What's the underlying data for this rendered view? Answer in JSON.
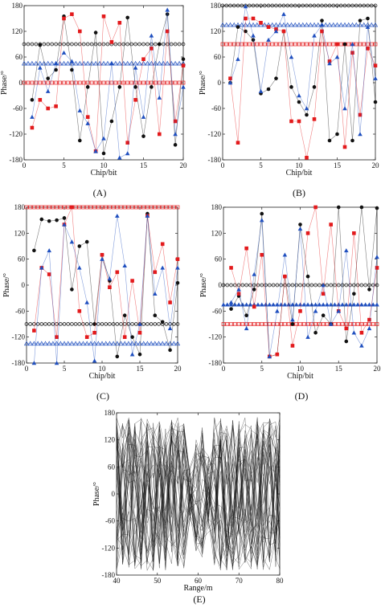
{
  "figure": {
    "panel_labels": [
      "(A)",
      "(B)",
      "(C)",
      "(D)",
      "(E)"
    ]
  },
  "colors": {
    "black": "#111111",
    "red": "#e31a1c",
    "blue": "#1f4fbf",
    "gray": "#777777"
  },
  "chart_data": [
    {
      "id": "A",
      "type": "scatter",
      "xlabel": "Chip/bit",
      "ylabel": "Phase/°",
      "xlim": [
        0,
        20
      ],
      "ylim": [
        -180,
        180
      ],
      "xticks": [
        0,
        5,
        10,
        15,
        20
      ],
      "yticks": [
        -180,
        -120,
        -60,
        0,
        60,
        120,
        180
      ],
      "reference_lines": [
        {
          "y": 90,
          "color": "black",
          "marker": "circle-open"
        },
        {
          "y": 45,
          "color": "blue",
          "marker": "triangle-open"
        },
        {
          "y": 0,
          "color": "red",
          "marker": "square-open"
        }
      ],
      "series": [
        {
          "color": "black",
          "marker": "circle",
          "x": [
            1,
            2,
            3,
            4,
            5,
            6,
            7,
            8,
            9,
            10,
            11,
            12,
            13,
            14,
            15,
            16,
            17,
            18,
            19,
            20
          ],
          "y": [
            -40,
            88,
            10,
            30,
            155,
            30,
            -135,
            -10,
            117,
            -165,
            -90,
            -10,
            152,
            -10,
            -125,
            -10,
            90,
            160,
            -145,
            55
          ]
        },
        {
          "color": "red",
          "marker": "square",
          "x": [
            1,
            2,
            3,
            4,
            5,
            6,
            7,
            8,
            9,
            10,
            11,
            12,
            13,
            14,
            15,
            16,
            17,
            18,
            19,
            20
          ],
          "y": [
            -105,
            -40,
            -60,
            -55,
            150,
            160,
            120,
            -80,
            -160,
            155,
            95,
            140,
            -140,
            -40,
            55,
            80,
            -120,
            120,
            -90,
            40
          ]
        },
        {
          "color": "blue",
          "marker": "triangle",
          "x": [
            1,
            2,
            3,
            4,
            5,
            6,
            7,
            8,
            9,
            10,
            11,
            12,
            13,
            14,
            15,
            16,
            17,
            18,
            19,
            20
          ],
          "y": [
            -80,
            35,
            -20,
            45,
            70,
            50,
            -65,
            -95,
            -160,
            -130,
            45,
            -175,
            -165,
            35,
            -80,
            110,
            -35,
            170,
            -120,
            -10
          ]
        }
      ]
    },
    {
      "id": "B",
      "type": "scatter",
      "xlabel": "Chip/bit",
      "ylabel": "Phase/°",
      "xlim": [
        0,
        20
      ],
      "ylim": [
        -180,
        180
      ],
      "xticks": [
        0,
        5,
        10,
        15,
        20
      ],
      "yticks": [
        -180,
        -120,
        -60,
        0,
        60,
        120,
        180
      ],
      "reference_lines": [
        {
          "y": 180,
          "color": "black",
          "marker": "circle-open"
        },
        {
          "y": 135,
          "color": "blue",
          "marker": "triangle-open"
        },
        {
          "y": 90,
          "color": "red",
          "marker": "square-open"
        }
      ],
      "series": [
        {
          "color": "black",
          "marker": "circle",
          "x": [
            1,
            2,
            3,
            4,
            5,
            6,
            7,
            8,
            9,
            10,
            11,
            12,
            13,
            14,
            15,
            16,
            17,
            18,
            19,
            20
          ],
          "y": [
            0,
            130,
            120,
            100,
            -25,
            -15,
            10,
            120,
            -10,
            -45,
            -75,
            -10,
            145,
            -135,
            -120,
            90,
            -135,
            145,
            150,
            -45
          ]
        },
        {
          "color": "red",
          "marker": "square",
          "x": [
            1,
            2,
            3,
            4,
            5,
            6,
            7,
            8,
            9,
            10,
            11,
            12,
            13,
            14,
            15,
            16,
            17,
            18,
            19,
            20
          ],
          "y": [
            10,
            -140,
            150,
            150,
            140,
            130,
            125,
            120,
            -90,
            -90,
            -175,
            -85,
            120,
            50,
            90,
            -150,
            70,
            -75,
            80,
            40
          ]
        },
        {
          "color": "blue",
          "marker": "triangle",
          "x": [
            1,
            2,
            3,
            4,
            5,
            6,
            7,
            8,
            9,
            10,
            11,
            12,
            13,
            14,
            15,
            16,
            17,
            18,
            19,
            20
          ],
          "y": [
            0,
            55,
            178,
            110,
            -20,
            100,
            120,
            160,
            60,
            -30,
            -60,
            110,
            135,
            45,
            60,
            -60,
            90,
            -120,
            130,
            10
          ]
        }
      ]
    },
    {
      "id": "C",
      "type": "scatter",
      "xlabel": "Chip/bit",
      "ylabel": "Phase/°",
      "xlim": [
        0,
        20
      ],
      "ylim": [
        -180,
        180
      ],
      "xticks": [
        0,
        5,
        10,
        15,
        20
      ],
      "yticks": [
        -180,
        -120,
        -60,
        0,
        60,
        120,
        180
      ],
      "reference_lines": [
        {
          "y": 180,
          "color": "red",
          "marker": "square-open"
        },
        {
          "y": -90,
          "color": "black",
          "marker": "circle-open"
        },
        {
          "y": -135,
          "color": "blue",
          "marker": "triangle-open"
        }
      ],
      "series": [
        {
          "color": "black",
          "marker": "circle",
          "x": [
            1,
            2,
            3,
            4,
            5,
            6,
            7,
            8,
            9,
            10,
            11,
            12,
            13,
            14,
            15,
            16,
            17,
            18,
            19,
            20
          ],
          "y": [
            80,
            152,
            148,
            150,
            155,
            -10,
            90,
            100,
            -90,
            70,
            10,
            -165,
            -70,
            -120,
            -160,
            165,
            -70,
            -85,
            -150,
            5
          ]
        },
        {
          "color": "red",
          "marker": "square",
          "x": [
            1,
            2,
            3,
            4,
            5,
            6,
            7,
            8,
            9,
            10,
            11,
            12,
            13,
            14,
            15,
            16,
            17,
            18,
            19,
            20
          ],
          "y": [
            -105,
            40,
            25,
            -120,
            140,
            180,
            -60,
            -120,
            -110,
            70,
            -5,
            30,
            -120,
            10,
            -110,
            160,
            30,
            95,
            -40,
            60
          ]
        },
        {
          "color": "blue",
          "marker": "triangle",
          "x": [
            1,
            2,
            3,
            4,
            5,
            6,
            7,
            8,
            9,
            10,
            11,
            12,
            13,
            14,
            15,
            16,
            17,
            18,
            19,
            20
          ],
          "y": [
            -180,
            40,
            80,
            -180,
            140,
            100,
            40,
            -40,
            -175,
            60,
            15,
            160,
            45,
            -160,
            -90,
            160,
            -20,
            40,
            -100,
            40
          ]
        }
      ]
    },
    {
      "id": "D",
      "type": "scatter",
      "xlabel": "Chip/bit",
      "ylabel": "Phase/°",
      "xlim": [
        0,
        20
      ],
      "ylim": [
        -180,
        180
      ],
      "xticks": [
        0,
        5,
        10,
        15,
        20
      ],
      "yticks": [
        -180,
        -120,
        -60,
        0,
        60,
        120,
        180
      ],
      "reference_lines": [
        {
          "y": 0,
          "color": "black",
          "marker": "circle-open"
        },
        {
          "y": -45,
          "color": "blue",
          "marker": "triangle-filled"
        },
        {
          "y": -90,
          "color": "red",
          "marker": "square-open"
        }
      ],
      "series": [
        {
          "color": "black",
          "marker": "circle",
          "x": [
            1,
            2,
            3,
            4,
            5,
            6,
            7,
            8,
            9,
            10,
            11,
            12,
            13,
            14,
            15,
            16,
            17,
            18,
            19,
            20
          ],
          "y": [
            -55,
            -25,
            -70,
            -10,
            165,
            -165,
            -160,
            20,
            -90,
            140,
            20,
            -110,
            -70,
            -90,
            180,
            -130,
            -20,
            180,
            -10,
            178
          ]
        },
        {
          "color": "red",
          "marker": "square",
          "x": [
            1,
            2,
            3,
            4,
            5,
            6,
            7,
            8,
            9,
            10,
            11,
            12,
            13,
            14,
            15,
            16,
            17,
            18,
            19,
            20
          ],
          "y": [
            40,
            -20,
            85,
            -50,
            70,
            -165,
            -160,
            20,
            -140,
            -60,
            120,
            180,
            -20,
            140,
            -60,
            -100,
            120,
            -110,
            -80,
            40
          ]
        },
        {
          "color": "blue",
          "marker": "triangle",
          "x": [
            1,
            2,
            3,
            4,
            5,
            6,
            7,
            8,
            9,
            10,
            11,
            12,
            13,
            14,
            15,
            16,
            17,
            18,
            19,
            20
          ],
          "y": [
            -40,
            -10,
            -100,
            25,
            150,
            -165,
            -60,
            70,
            -80,
            130,
            -120,
            -60,
            0,
            -90,
            -60,
            80,
            -110,
            -140,
            -100,
            65
          ]
        }
      ]
    },
    {
      "id": "E",
      "type": "line",
      "xlabel": "Range/m",
      "ylabel": "Phase/°",
      "xlim": [
        40,
        80
      ],
      "ylim": [
        -180,
        180
      ],
      "xticks": [
        40,
        50,
        60,
        70,
        80
      ],
      "yticks": [
        -180,
        -120,
        -60,
        0,
        60,
        120,
        180
      ],
      "trace_count": 40,
      "x_points": [
        40,
        41.5,
        43,
        44.5,
        46,
        47.5,
        49,
        50.5,
        52,
        53.5,
        55,
        56.5,
        58,
        59.5,
        61,
        62.5,
        64,
        65.5,
        67,
        68.5,
        70,
        71.5,
        73,
        74.5,
        76,
        77.5,
        79,
        80
      ],
      "color": "black"
    }
  ]
}
